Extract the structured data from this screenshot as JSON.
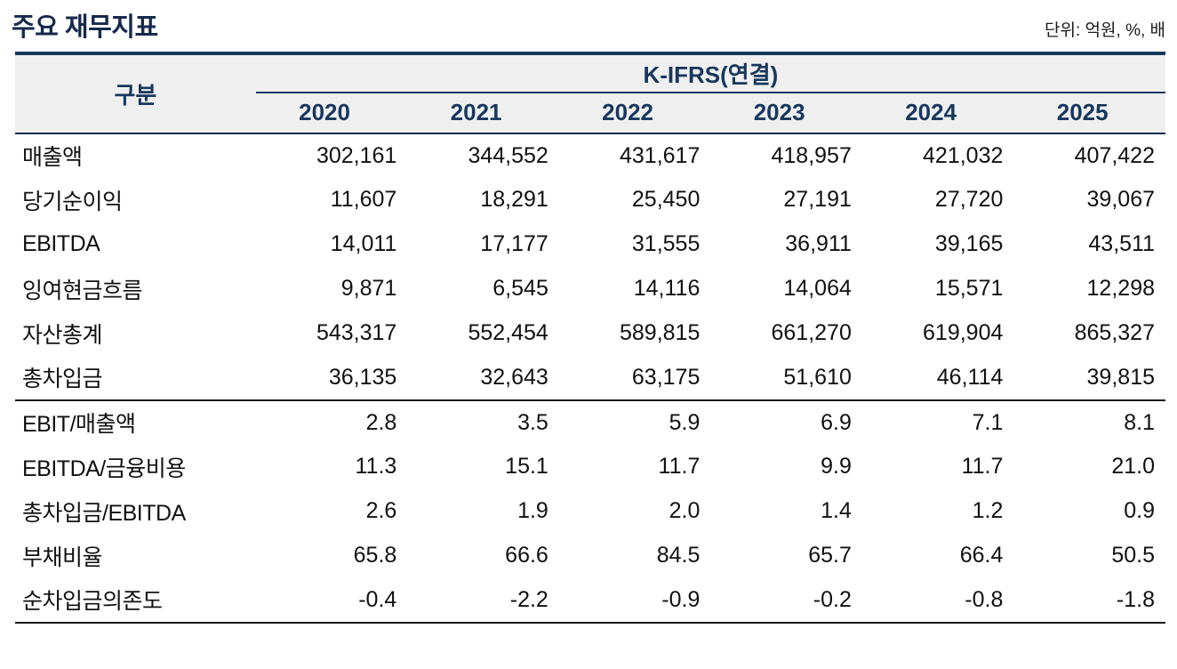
{
  "page": {
    "title": "주요 재무지표",
    "unit_note": "단위: 억원, %, 배"
  },
  "colors": {
    "navy_accent": "#17375E",
    "title_navy": "#16294C",
    "header_background": "#EFEFEF",
    "body_text": "#111111",
    "section_divider": "#1A1A1A"
  },
  "table": {
    "category_header": "구분",
    "group_header": "K-IFRS(연결)",
    "years": [
      "2020",
      "2021",
      "2022",
      "2023",
      "2024",
      "2025"
    ],
    "rows": [
      {
        "label": "매출액",
        "section": "amounts",
        "values": [
          "302,161",
          "344,552",
          "431,617",
          "418,957",
          "421,032",
          "407,422"
        ]
      },
      {
        "label": "당기순이익",
        "section": "amounts",
        "values": [
          "11,607",
          "18,291",
          "25,450",
          "27,191",
          "27,720",
          "39,067"
        ]
      },
      {
        "label": "EBITDA",
        "section": "amounts",
        "values": [
          "14,011",
          "17,177",
          "31,555",
          "36,911",
          "39,165",
          "43,511"
        ]
      },
      {
        "label": "잉여현금흐름",
        "section": "amounts",
        "values": [
          "9,871",
          "6,545",
          "14,116",
          "14,064",
          "15,571",
          "12,298"
        ]
      },
      {
        "label": "자산총계",
        "section": "amounts",
        "values": [
          "543,317",
          "552,454",
          "589,815",
          "661,270",
          "619,904",
          "865,327"
        ]
      },
      {
        "label": "총차입금",
        "section": "amounts",
        "values": [
          "36,135",
          "32,643",
          "63,175",
          "51,610",
          "46,114",
          "39,815"
        ]
      },
      {
        "label": "EBIT/매출액",
        "section": "ratios",
        "values": [
          "2.8",
          "3.5",
          "5.9",
          "6.9",
          "7.1",
          "8.1"
        ]
      },
      {
        "label": "EBITDA/금융비용",
        "section": "ratios",
        "values": [
          "11.3",
          "15.1",
          "11.7",
          "9.9",
          "11.7",
          "21.0"
        ]
      },
      {
        "label": "총차입금/EBITDA",
        "section": "ratios",
        "values": [
          "2.6",
          "1.9",
          "2.0",
          "1.4",
          "1.2",
          "0.9"
        ]
      },
      {
        "label": "부채비율",
        "section": "ratios",
        "values": [
          "65.8",
          "66.6",
          "84.5",
          "65.7",
          "66.4",
          "50.5"
        ]
      },
      {
        "label": "순차입금의존도",
        "section": "ratios",
        "values": [
          "-0.4",
          "-2.2",
          "-0.9",
          "-0.2",
          "-0.8",
          "-1.8"
        ]
      }
    ]
  }
}
